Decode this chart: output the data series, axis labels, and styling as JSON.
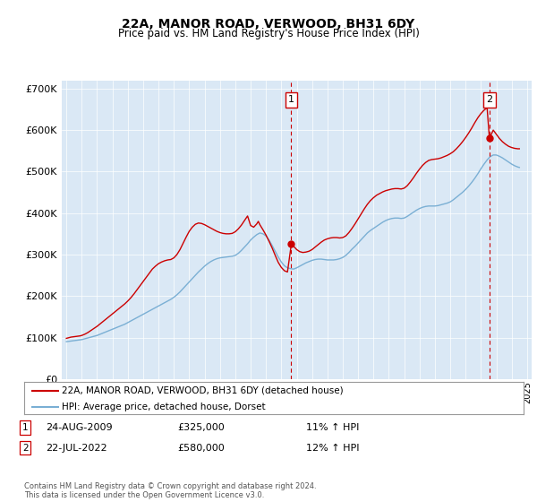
{
  "title": "22A, MANOR ROAD, VERWOOD, BH31 6DY",
  "subtitle": "Price paid vs. HM Land Registry's House Price Index (HPI)",
  "bg_color": "#dae8f5",
  "legend_line1": "22A, MANOR ROAD, VERWOOD, BH31 6DY (detached house)",
  "legend_line2": "HPI: Average price, detached house, Dorset",
  "sale1_date": "24-AUG-2009",
  "sale1_price": "£325,000",
  "sale1_hpi": "11% ↑ HPI",
  "sale1_year": 2009.65,
  "sale1_value": 325000,
  "sale2_date": "22-JUL-2022",
  "sale2_price": "£580,000",
  "sale2_hpi": "12% ↑ HPI",
  "sale2_year": 2022.55,
  "sale2_value": 580000,
  "footnote": "Contains HM Land Registry data © Crown copyright and database right 2024.\nThis data is licensed under the Open Government Licence v3.0.",
  "ylim": [
    0,
    720000
  ],
  "yticks": [
    0,
    100000,
    200000,
    300000,
    400000,
    500000,
    600000,
    700000
  ],
  "ytick_labels": [
    "£0",
    "£100K",
    "£200K",
    "£300K",
    "£400K",
    "£500K",
    "£600K",
    "£700K"
  ],
  "red_line_color": "#cc0000",
  "blue_line_color": "#7aafd4",
  "hpi_x": [
    1995.0,
    1995.1,
    1995.2,
    1995.3,
    1995.4,
    1995.5,
    1995.6,
    1995.7,
    1995.8,
    1995.9,
    1996.0,
    1996.1,
    1996.2,
    1996.3,
    1996.4,
    1996.5,
    1996.6,
    1996.7,
    1996.8,
    1996.9,
    1997.0,
    1997.2,
    1997.4,
    1997.6,
    1997.8,
    1998.0,
    1998.2,
    1998.4,
    1998.6,
    1998.8,
    1999.0,
    1999.2,
    1999.4,
    1999.6,
    1999.8,
    2000.0,
    2000.2,
    2000.4,
    2000.6,
    2000.8,
    2001.0,
    2001.2,
    2001.4,
    2001.6,
    2001.8,
    2002.0,
    2002.2,
    2002.4,
    2002.6,
    2002.8,
    2003.0,
    2003.2,
    2003.4,
    2003.6,
    2003.8,
    2004.0,
    2004.2,
    2004.4,
    2004.6,
    2004.8,
    2005.0,
    2005.2,
    2005.4,
    2005.6,
    2005.8,
    2006.0,
    2006.2,
    2006.4,
    2006.6,
    2006.8,
    2007.0,
    2007.2,
    2007.4,
    2007.6,
    2007.8,
    2008.0,
    2008.2,
    2008.4,
    2008.6,
    2008.8,
    2009.0,
    2009.2,
    2009.4,
    2009.6,
    2009.8,
    2010.0,
    2010.2,
    2010.4,
    2010.6,
    2010.8,
    2011.0,
    2011.2,
    2011.4,
    2011.6,
    2011.8,
    2012.0,
    2012.2,
    2012.4,
    2012.6,
    2012.8,
    2013.0,
    2013.2,
    2013.4,
    2013.6,
    2013.8,
    2014.0,
    2014.2,
    2014.4,
    2014.6,
    2014.8,
    2015.0,
    2015.2,
    2015.4,
    2015.6,
    2015.8,
    2016.0,
    2016.2,
    2016.4,
    2016.6,
    2016.8,
    2017.0,
    2017.2,
    2017.4,
    2017.6,
    2017.8,
    2018.0,
    2018.2,
    2018.4,
    2018.6,
    2018.8,
    2019.0,
    2019.2,
    2019.4,
    2019.6,
    2019.8,
    2020.0,
    2020.2,
    2020.4,
    2020.6,
    2020.8,
    2021.0,
    2021.2,
    2021.4,
    2021.6,
    2021.8,
    2022.0,
    2022.2,
    2022.4,
    2022.6,
    2022.8,
    2023.0,
    2023.2,
    2023.4,
    2023.6,
    2023.8,
    2024.0,
    2024.2,
    2024.4,
    2024.5
  ],
  "hpi_y": [
    90000,
    90500,
    91000,
    91500,
    92000,
    92500,
    93000,
    93500,
    94000,
    94500,
    95000,
    96000,
    97000,
    98000,
    99000,
    100000,
    101000,
    102000,
    103000,
    104000,
    105000,
    108000,
    111000,
    114000,
    117000,
    120000,
    123000,
    126000,
    129000,
    132000,
    136000,
    140000,
    144000,
    148000,
    152000,
    156000,
    160000,
    164000,
    168000,
    172000,
    176000,
    180000,
    184000,
    188000,
    192000,
    197000,
    203000,
    210000,
    218000,
    226000,
    234000,
    242000,
    250000,
    258000,
    265000,
    272000,
    278000,
    283000,
    287000,
    290000,
    292000,
    293000,
    294000,
    295000,
    296000,
    298000,
    303000,
    310000,
    318000,
    326000,
    335000,
    342000,
    348000,
    352000,
    350000,
    345000,
    335000,
    322000,
    308000,
    294000,
    282000,
    273000,
    268000,
    266000,
    265000,
    268000,
    272000,
    276000,
    280000,
    283000,
    286000,
    288000,
    289000,
    289000,
    288000,
    287000,
    287000,
    287000,
    288000,
    290000,
    293000,
    298000,
    305000,
    313000,
    320000,
    328000,
    336000,
    344000,
    352000,
    358000,
    363000,
    368000,
    373000,
    378000,
    382000,
    385000,
    387000,
    388000,
    388000,
    387000,
    388000,
    392000,
    397000,
    402000,
    407000,
    411000,
    414000,
    416000,
    417000,
    417000,
    417000,
    418000,
    420000,
    422000,
    424000,
    427000,
    432000,
    438000,
    444000,
    450000,
    457000,
    465000,
    474000,
    484000,
    495000,
    507000,
    518000,
    528000,
    536000,
    540000,
    540000,
    537000,
    533000,
    528000,
    523000,
    518000,
    514000,
    511000,
    510000
  ],
  "prop_x": [
    1995.0,
    1995.1,
    1995.2,
    1995.3,
    1995.4,
    1995.5,
    1995.6,
    1995.7,
    1995.8,
    1995.9,
    1996.0,
    1996.2,
    1996.4,
    1996.6,
    1996.8,
    1997.0,
    1997.2,
    1997.4,
    1997.6,
    1997.8,
    1998.0,
    1998.2,
    1998.4,
    1998.6,
    1998.8,
    1999.0,
    1999.2,
    1999.4,
    1999.6,
    1999.8,
    2000.0,
    2000.2,
    2000.4,
    2000.6,
    2000.8,
    2001.0,
    2001.2,
    2001.4,
    2001.6,
    2001.8,
    2002.0,
    2002.2,
    2002.4,
    2002.6,
    2002.8,
    2003.0,
    2003.2,
    2003.4,
    2003.6,
    2003.8,
    2004.0,
    2004.2,
    2004.4,
    2004.6,
    2004.8,
    2005.0,
    2005.2,
    2005.4,
    2005.6,
    2005.8,
    2006.0,
    2006.2,
    2006.4,
    2006.6,
    2006.8,
    2007.0,
    2007.2,
    2007.4,
    2007.5,
    2007.6,
    2007.8,
    2008.0,
    2008.2,
    2008.4,
    2008.6,
    2008.8,
    2009.0,
    2009.2,
    2009.4,
    2009.65,
    2009.8,
    2010.0,
    2010.2,
    2010.4,
    2010.6,
    2010.8,
    2011.0,
    2011.2,
    2011.4,
    2011.6,
    2011.8,
    2012.0,
    2012.2,
    2012.4,
    2012.6,
    2012.8,
    2013.0,
    2013.2,
    2013.4,
    2013.6,
    2013.8,
    2014.0,
    2014.2,
    2014.4,
    2014.6,
    2014.8,
    2015.0,
    2015.2,
    2015.4,
    2015.6,
    2015.8,
    2016.0,
    2016.2,
    2016.4,
    2016.6,
    2016.8,
    2017.0,
    2017.2,
    2017.4,
    2017.6,
    2017.8,
    2018.0,
    2018.2,
    2018.4,
    2018.6,
    2018.8,
    2019.0,
    2019.2,
    2019.4,
    2019.6,
    2019.8,
    2020.0,
    2020.2,
    2020.4,
    2020.6,
    2020.8,
    2021.0,
    2021.2,
    2021.4,
    2021.6,
    2021.8,
    2022.0,
    2022.2,
    2022.4,
    2022.55,
    2022.8,
    2023.0,
    2023.2,
    2023.4,
    2023.6,
    2023.8,
    2024.0,
    2024.2,
    2024.4,
    2024.5
  ],
  "prop_y": [
    98000,
    99000,
    100000,
    101000,
    101500,
    102000,
    102500,
    103000,
    103500,
    104000,
    105000,
    108000,
    112000,
    117000,
    122000,
    127000,
    133000,
    139000,
    145000,
    151000,
    157000,
    163000,
    169000,
    175000,
    181000,
    188000,
    196000,
    205000,
    215000,
    225000,
    235000,
    245000,
    255000,
    265000,
    272000,
    278000,
    282000,
    285000,
    287000,
    288000,
    292000,
    300000,
    312000,
    327000,
    342000,
    356000,
    366000,
    373000,
    376000,
    375000,
    372000,
    368000,
    364000,
    360000,
    356000,
    353000,
    351000,
    350000,
    350000,
    351000,
    355000,
    362000,
    371000,
    382000,
    393000,
    370000,
    366000,
    374000,
    380000,
    372000,
    360000,
    347000,
    332000,
    316000,
    298000,
    281000,
    269000,
    261000,
    258000,
    325000,
    320000,
    312000,
    307000,
    305000,
    306000,
    308000,
    312000,
    318000,
    324000,
    330000,
    335000,
    338000,
    340000,
    341000,
    341000,
    340000,
    341000,
    345000,
    353000,
    363000,
    374000,
    386000,
    398000,
    410000,
    421000,
    430000,
    437000,
    443000,
    447000,
    451000,
    454000,
    456000,
    458000,
    459000,
    459000,
    458000,
    460000,
    466000,
    475000,
    485000,
    496000,
    506000,
    515000,
    522000,
    527000,
    529000,
    530000,
    531000,
    533000,
    536000,
    539000,
    543000,
    548000,
    555000,
    563000,
    572000,
    582000,
    593000,
    605000,
    618000,
    630000,
    640000,
    648000,
    654000,
    580000,
    600000,
    590000,
    580000,
    572000,
    566000,
    561000,
    558000,
    556000,
    555000,
    555000
  ]
}
